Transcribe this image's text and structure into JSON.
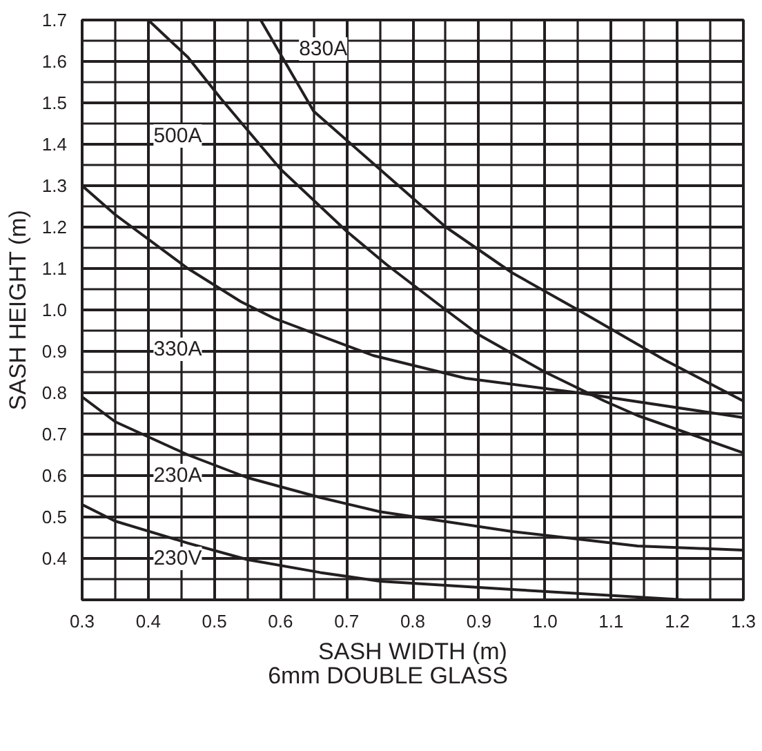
{
  "chart_data": {
    "type": "line",
    "xlabel": "SASH WIDTH (m)",
    "ylabel": "SASH HEIGHT (m)",
    "annotations": [
      "6mm DOUBLE GLASS"
    ],
    "xlim": [
      0.3,
      1.3
    ],
    "ylim": [
      0.3,
      1.7
    ],
    "xticks": [
      0.3,
      0.4,
      0.5,
      0.6,
      0.7,
      0.8,
      0.9,
      "1.0",
      1.1,
      1.2,
      1.3
    ],
    "yticks": [
      0.4,
      0.5,
      0.6,
      0.7,
      0.8,
      0.9,
      {
        "value": 1.0,
        "label": "1.0"
      },
      1.1,
      1.2,
      1.3,
      1.4,
      1.5,
      1.6,
      1.7
    ],
    "grid": true,
    "legend": false,
    "marker": "none",
    "line_style": "solid",
    "series": [
      {
        "name": "830A",
        "color": "#231f20",
        "x": [
          0.57,
          0.65,
          0.75,
          0.85,
          0.95,
          1.05,
          1.18,
          1.3
        ],
        "values": [
          1.7,
          1.48,
          1.34,
          1.2,
          1.09,
          1.0,
          0.88,
          0.78
        ]
      },
      {
        "name": "500A",
        "color": "#231f20",
        "x": [
          0.4,
          0.46,
          0.51,
          0.6,
          0.7,
          0.76,
          0.85,
          0.9,
          1.0,
          1.09,
          1.14,
          1.3
        ],
        "values": [
          1.7,
          1.61,
          1.51,
          1.34,
          1.19,
          1.11,
          1.0,
          0.94,
          0.85,
          0.78,
          0.745,
          0.655
        ]
      },
      {
        "name": "330A",
        "color": "#231f20",
        "x": [
          0.3,
          0.35,
          0.46,
          0.54,
          0.59,
          0.74,
          0.88,
          1.05,
          1.3
        ],
        "values": [
          1.3,
          1.23,
          1.1,
          1.02,
          0.98,
          0.89,
          0.835,
          0.8,
          0.74
        ]
      },
      {
        "name": "230A",
        "color": "#231f20",
        "x": [
          0.3,
          0.35,
          0.46,
          0.55,
          0.66,
          0.75,
          0.95,
          1.14,
          1.3
        ],
        "values": [
          0.79,
          0.73,
          0.65,
          0.595,
          0.547,
          0.513,
          0.465,
          0.43,
          0.42
        ]
      },
      {
        "name": "230V",
        "color": "#231f20",
        "x": [
          0.3,
          0.35,
          0.46,
          0.55,
          0.66,
          0.75,
          0.95,
          1.21
        ],
        "values": [
          0.53,
          0.49,
          0.437,
          0.397,
          0.366,
          0.345,
          0.325,
          0.3
        ]
      }
    ]
  }
}
